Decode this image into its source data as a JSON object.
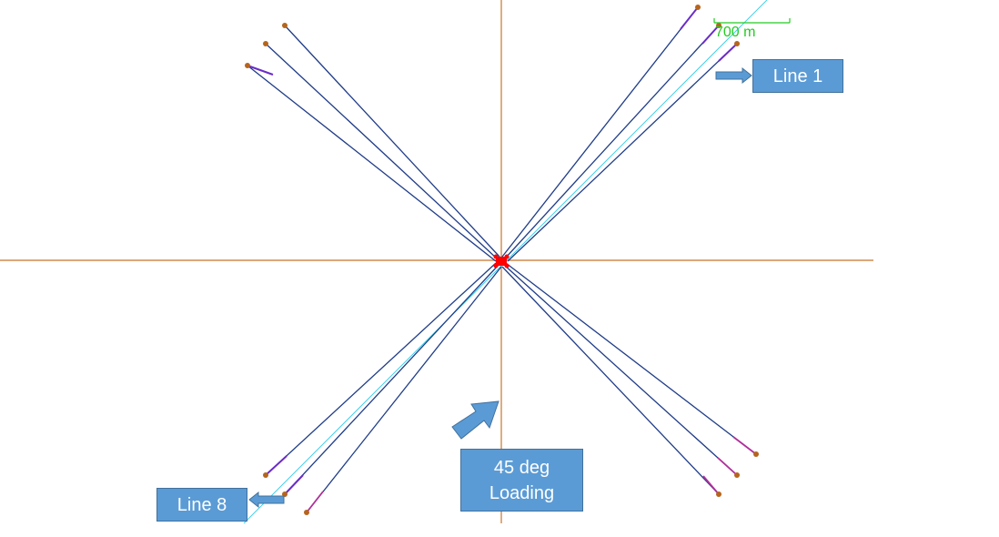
{
  "scale_bar": {
    "label": "700 m"
  },
  "callouts": {
    "line1": "Line 1",
    "line8": "Line 8",
    "loading_line1": "45 deg",
    "loading_line2": "Loading"
  },
  "colors": {
    "mooring_line": "#1f3c88",
    "mooring_end_segment": "#6a2cc8",
    "mooring_end_segment_alt": "#b0309a",
    "anchor": "#b5651d",
    "axis": "#c8742c",
    "diagonal": "#40d0e8",
    "vessel": "#ff0000",
    "scale_bar": "#22cc22",
    "callout_fill": "#5b9bd5"
  },
  "icons": [
    "anchor-point-icon",
    "vessel-icon",
    "arrow-right-icon",
    "arrow-left-icon",
    "loading-direction-arrow-icon"
  ]
}
